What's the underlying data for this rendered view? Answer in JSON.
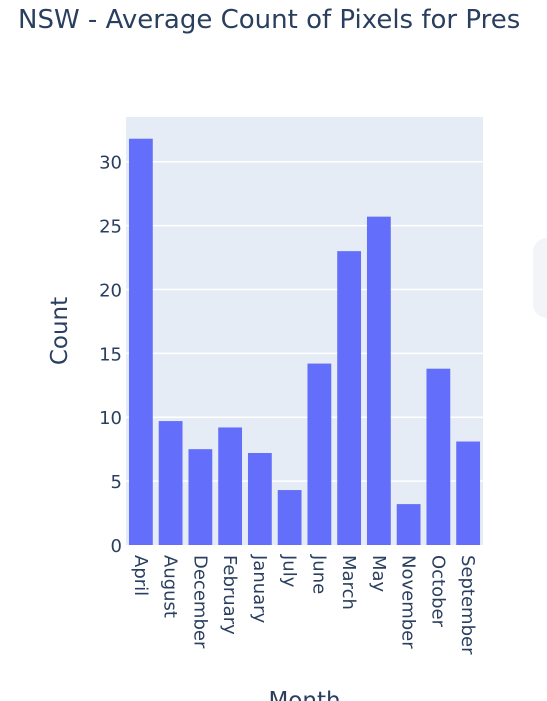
{
  "chart_data": {
    "type": "bar",
    "title": "NSW - Average Count of Pixels for Pres",
    "xlabel": "Month",
    "ylabel": "Count",
    "categories": [
      "April",
      "August",
      "December",
      "February",
      "January",
      "July",
      "June",
      "March",
      "May",
      "November",
      "October",
      "September"
    ],
    "values": [
      31.8,
      9.7,
      7.5,
      9.2,
      7.2,
      4.3,
      14.2,
      23.0,
      25.7,
      3.2,
      13.8,
      8.1
    ],
    "yticks": [
      "0",
      "5",
      "10",
      "15",
      "20",
      "25",
      "30"
    ],
    "ylim": [
      0,
      33.5
    ],
    "grid": true,
    "bar_color": "#636efa",
    "plot_background": "#e5ecf6"
  }
}
